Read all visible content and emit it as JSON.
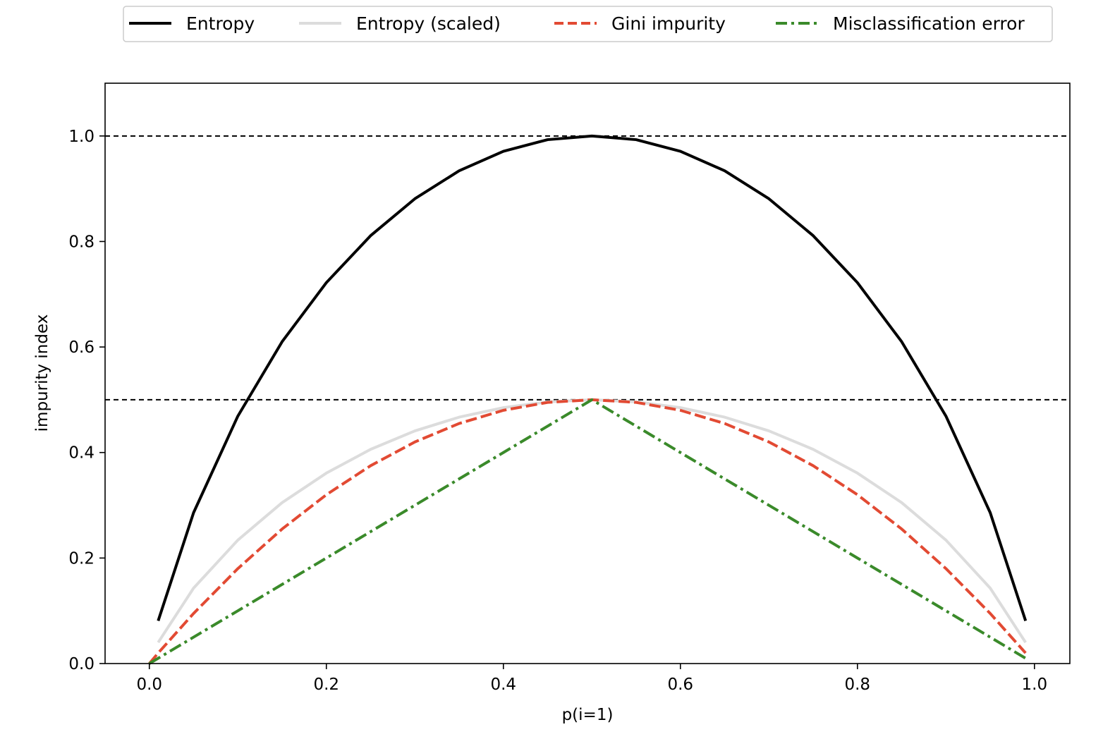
{
  "chart_data": {
    "type": "line",
    "title": "",
    "xlabel": "p(i=1)",
    "ylabel": "impurity index",
    "xlim": [
      -0.05,
      1.04
    ],
    "ylim": [
      0.0,
      1.1
    ],
    "x_ticks": [
      "0.0",
      "0.2",
      "0.4",
      "0.6",
      "0.8",
      "1.0"
    ],
    "y_ticks": [
      "0.0",
      "0.2",
      "0.4",
      "0.6",
      "0.8",
      "1.0"
    ],
    "grid": false,
    "legend_position": "top-center, above plot",
    "reference_lines": [
      {
        "y": 1.0,
        "style": "dashed",
        "color": "#000000"
      },
      {
        "y": 0.5,
        "style": "dashed",
        "color": "#000000"
      }
    ],
    "x": [
      0.0,
      0.01,
      0.05,
      0.1,
      0.15,
      0.2,
      0.25,
      0.3,
      0.35,
      0.4,
      0.45,
      0.5,
      0.55,
      0.6,
      0.65,
      0.7,
      0.75,
      0.8,
      0.85,
      0.9,
      0.95,
      0.99
    ],
    "series": [
      {
        "name": "Entropy",
        "color": "#000000",
        "style": "solid",
        "values": [
          null,
          0.081,
          0.286,
          0.469,
          0.61,
          0.722,
          0.811,
          0.881,
          0.934,
          0.971,
          0.993,
          1.0,
          0.993,
          0.971,
          0.934,
          0.881,
          0.811,
          0.722,
          0.61,
          0.469,
          0.286,
          0.081
        ]
      },
      {
        "name": "Entropy (scaled)",
        "color": "#dcdcdc",
        "style": "solid",
        "values": [
          null,
          0.04,
          0.143,
          0.234,
          0.305,
          0.361,
          0.406,
          0.441,
          0.467,
          0.485,
          0.496,
          0.5,
          0.496,
          0.485,
          0.467,
          0.441,
          0.406,
          0.361,
          0.305,
          0.234,
          0.143,
          0.04
        ]
      },
      {
        "name": "Gini impurity",
        "color": "#e24a33",
        "style": "dashed",
        "values": [
          0.0,
          0.02,
          0.095,
          0.18,
          0.255,
          0.32,
          0.375,
          0.42,
          0.455,
          0.48,
          0.495,
          0.5,
          0.495,
          0.48,
          0.455,
          0.42,
          0.375,
          0.32,
          0.255,
          0.18,
          0.095,
          0.02
        ]
      },
      {
        "name": "Misclassification error",
        "color": "#3a8a2a",
        "style": "dashdot",
        "values": [
          0.0,
          0.01,
          0.05,
          0.1,
          0.15,
          0.2,
          0.25,
          0.3,
          0.35,
          0.4,
          0.45,
          0.5,
          0.45,
          0.4,
          0.35,
          0.3,
          0.25,
          0.2,
          0.15,
          0.1,
          0.05,
          0.01
        ]
      }
    ]
  }
}
